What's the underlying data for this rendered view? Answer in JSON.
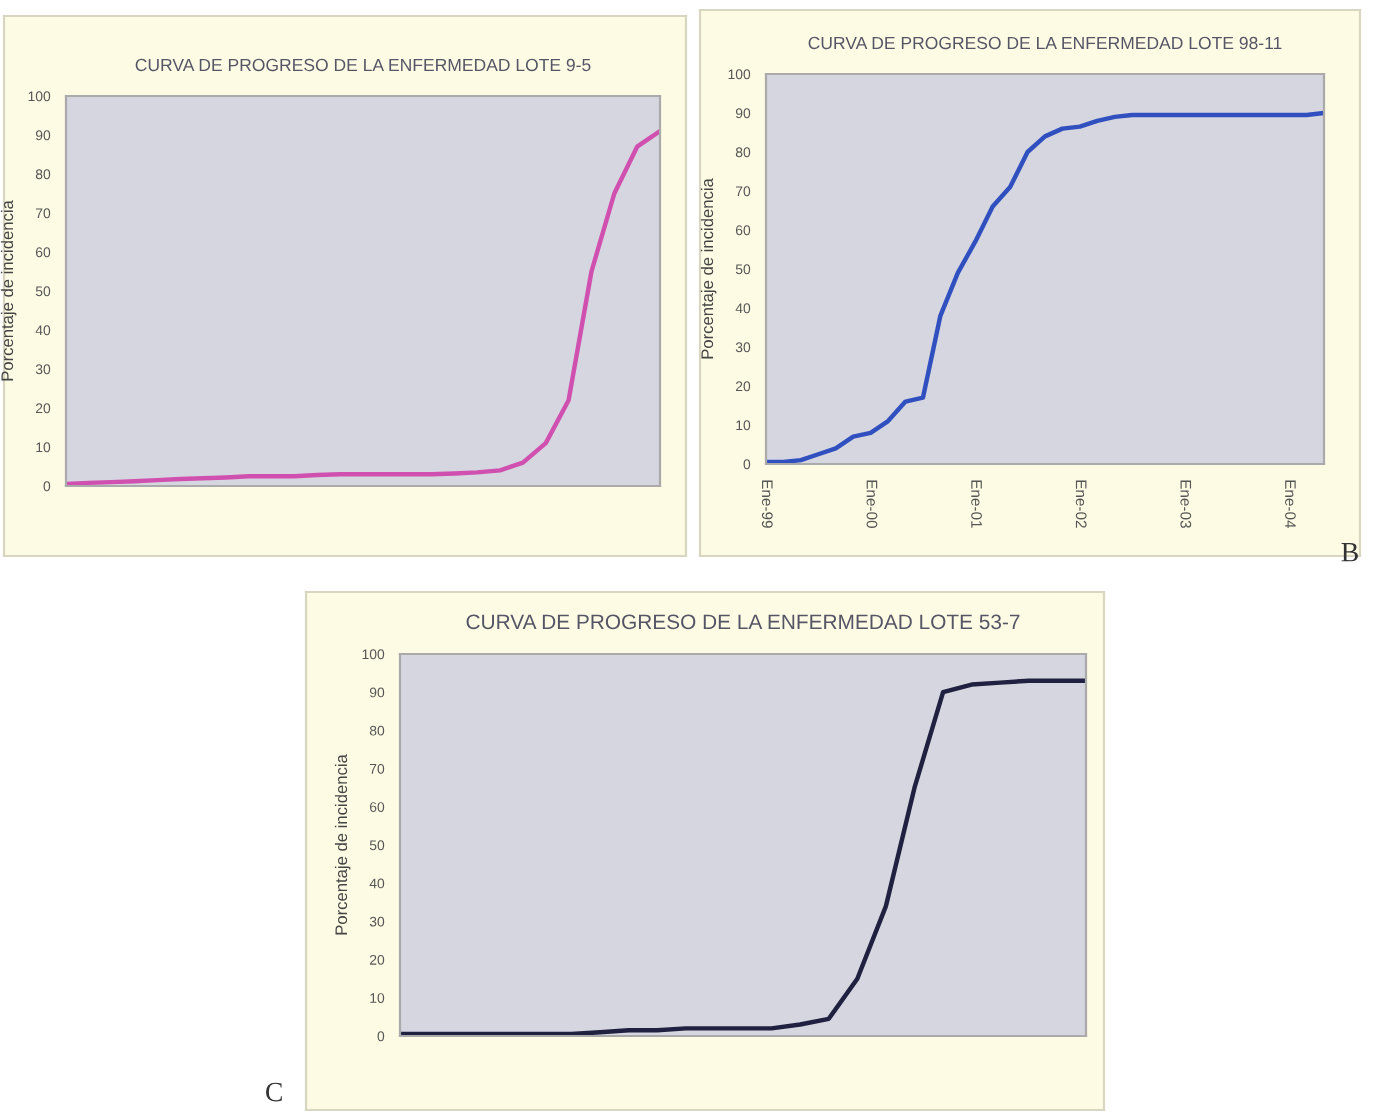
{
  "chart_data": [
    {
      "type": "line",
      "title": "CURVA DE PROGRESO DE LA ENFERMEDAD LOTE 9-5",
      "ylabel": "Porcentaje de incidencia",
      "categories": [
        null,
        null,
        null,
        null,
        null,
        null,
        null,
        null,
        null,
        null,
        null,
        null,
        null,
        null,
        null,
        null,
        null,
        null,
        null,
        null,
        null,
        null,
        null,
        null,
        null,
        null,
        null
      ],
      "series": [
        {
          "color": "#d050b0",
          "values": [
            0.5,
            0.8,
            1,
            1.2,
            1.5,
            1.8,
            2,
            2.2,
            2.5,
            2.5,
            2.5,
            2.8,
            3,
            3,
            3,
            3,
            3,
            3.2,
            3.5,
            4,
            6,
            11,
            22,
            55,
            75,
            87,
            91
          ]
        }
      ],
      "ylim": [
        0,
        100
      ],
      "yticks": [
        0,
        10,
        20,
        30,
        40,
        50,
        60,
        70,
        80,
        90,
        100
      ],
      "grid": false,
      "legend": false
    },
    {
      "type": "line",
      "title": "CURVA DE PROGRESO DE LA ENFERMEDAD LOTE 98-11",
      "ylabel": "Porcentaje de incidencia",
      "categories": [
        "Ene-99",
        null,
        null,
        null,
        null,
        null,
        "Ene-00",
        null,
        null,
        null,
        null,
        null,
        "Ene-01",
        null,
        null,
        null,
        null,
        null,
        "Ene-02",
        null,
        null,
        null,
        null,
        null,
        "Ene-03",
        null,
        null,
        null,
        null,
        null,
        "Ene-04",
        null,
        null
      ],
      "series": [
        {
          "color": "#3050c0",
          "values": [
            0.5,
            0.5,
            1,
            2.5,
            4,
            7,
            8,
            11,
            16,
            17,
            38,
            49,
            57,
            66,
            71,
            80,
            84,
            86,
            86.5,
            88,
            89,
            89.5,
            89.5,
            89.5,
            89.5,
            89.5,
            89.5,
            89.5,
            89.5,
            89.5,
            89.5,
            89.5,
            90
          ]
        }
      ],
      "ylim": [
        0,
        100
      ],
      "yticks": [
        0,
        10,
        20,
        30,
        40,
        50,
        60,
        70,
        80,
        90,
        100
      ],
      "grid": false,
      "legend": false,
      "annotations": [
        "B"
      ]
    },
    {
      "type": "line",
      "title": "CURVA DE PROGRESO DE LA ENFERMEDAD LOTE 53-7",
      "ylabel": "Porcentaje de incidencia",
      "categories": [
        null,
        null,
        null,
        null,
        null,
        null,
        null,
        null,
        null,
        null,
        null,
        null,
        null,
        null,
        null,
        null,
        null,
        null,
        null,
        null,
        null,
        null,
        null,
        null,
        null
      ],
      "series": [
        {
          "color": "#202040",
          "values": [
            0.5,
            0.5,
            0.5,
            0.5,
            0.5,
            0.5,
            0.5,
            1,
            1.5,
            1.5,
            2,
            2,
            2,
            2,
            3,
            4.5,
            15,
            34,
            65,
            90,
            92,
            92.5,
            93,
            93,
            93
          ]
        }
      ],
      "ylim": [
        0,
        100
      ],
      "yticks": [
        0,
        10,
        20,
        30,
        40,
        50,
        60,
        70,
        80,
        90,
        100
      ],
      "grid": false,
      "legend": false,
      "annotations": [
        "C"
      ]
    }
  ]
}
